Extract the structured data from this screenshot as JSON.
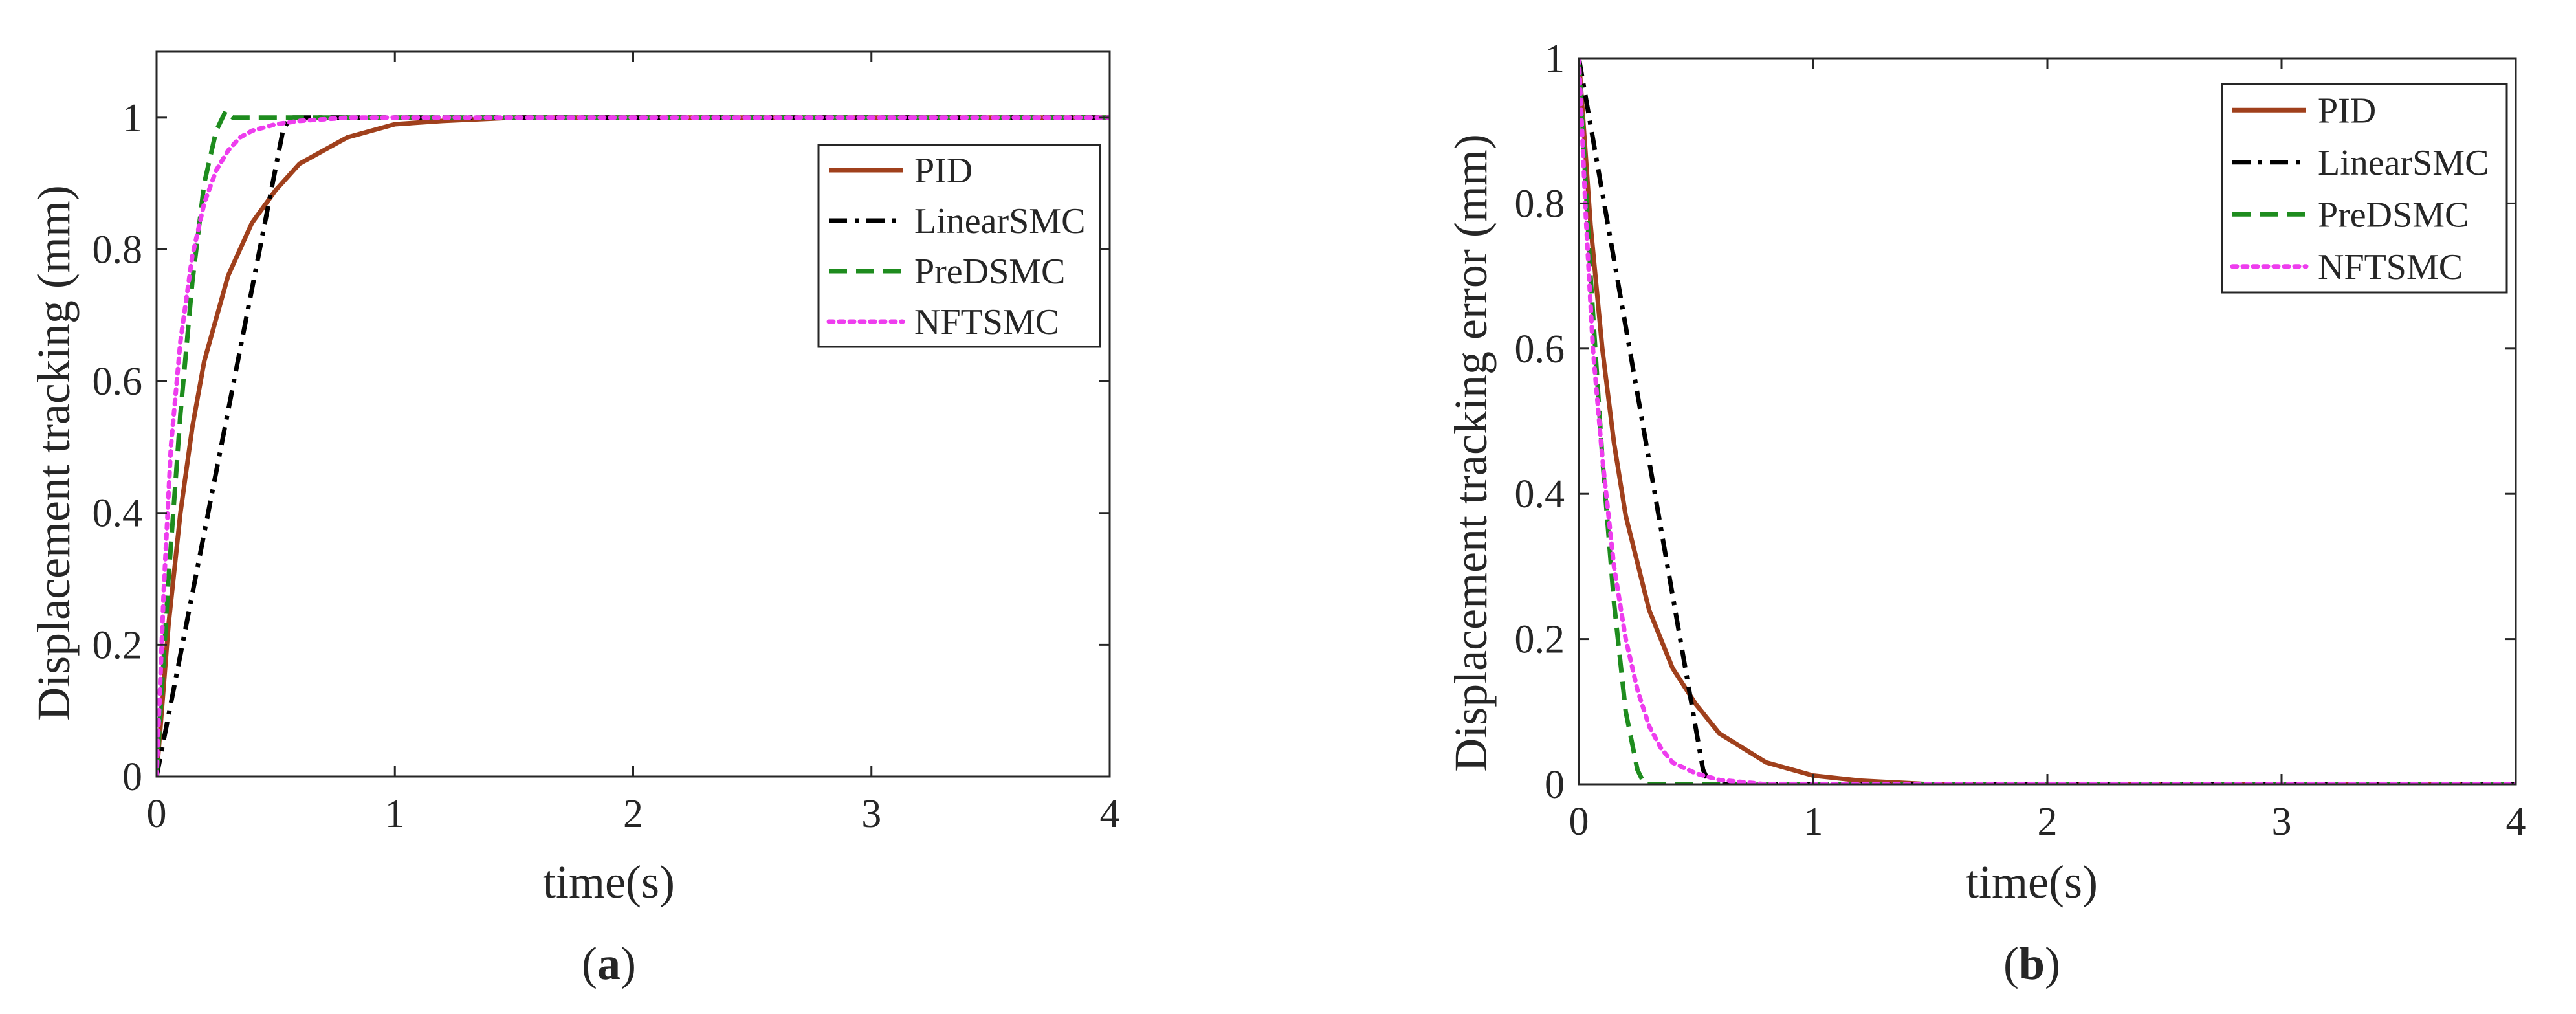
{
  "chart_data": [
    {
      "type": "line",
      "panel_label": "a",
      "title": "",
      "xlabel": "time(s)",
      "ylabel": "Displacement tracking (mm)",
      "xlim": [
        0,
        4
      ],
      "ylim": [
        0,
        1.1
      ],
      "xticks": [
        0,
        1,
        2,
        3,
        4
      ],
      "yticks": [
        0,
        0.2,
        0.4,
        0.6,
        0.8,
        1
      ],
      "xtick_labels": [
        "0",
        "1",
        "2",
        "3",
        "4"
      ],
      "ytick_labels": [
        "0",
        "0.2",
        "0.4",
        "0.6",
        "0.8",
        "1"
      ],
      "legend_position": "top-right",
      "series": [
        {
          "name": "PID",
          "color": "#a0401c",
          "dash": "solid",
          "x": [
            0,
            0.05,
            0.1,
            0.15,
            0.2,
            0.3,
            0.4,
            0.5,
            0.6,
            0.7,
            0.8,
            1.0,
            1.2,
            1.5,
            2.0,
            3.0,
            4.0
          ],
          "y": [
            0,
            0.23,
            0.4,
            0.53,
            0.63,
            0.76,
            0.84,
            0.89,
            0.93,
            0.95,
            0.97,
            0.99,
            0.995,
            1.0,
            1.0,
            1.0,
            1.0
          ]
        },
        {
          "name": "LinearSMC",
          "color": "#000000",
          "dash": "dashdot",
          "x": [
            0,
            0.53,
            0.56,
            1.0,
            2.0,
            3.0,
            4.0
          ],
          "y": [
            0,
            0.98,
            1.0,
            1.0,
            1.0,
            1.0,
            1.0
          ]
        },
        {
          "name": "PreDSMC",
          "color": "#1e8c1e",
          "dash": "dashed",
          "x": [
            0,
            0.05,
            0.1,
            0.15,
            0.2,
            0.25,
            0.29,
            0.32,
            0.36,
            0.5,
            1.0,
            2.0,
            3.0,
            4.0
          ],
          "y": [
            0,
            0.3,
            0.55,
            0.75,
            0.9,
            0.98,
            1.01,
            1.0,
            1.0,
            1.0,
            1.0,
            1.0,
            1.0,
            1.0
          ]
        },
        {
          "name": "NFTSMC",
          "color": "#ee3dee",
          "dash": "dotted",
          "x": [
            0,
            0.03,
            0.06,
            0.1,
            0.15,
            0.2,
            0.25,
            0.3,
            0.35,
            0.4,
            0.5,
            0.6,
            0.8,
            1.0,
            2.0,
            3.0,
            4.0
          ],
          "y": [
            0,
            0.28,
            0.5,
            0.66,
            0.79,
            0.87,
            0.92,
            0.95,
            0.97,
            0.98,
            0.99,
            0.995,
            1.0,
            1.0,
            1.0,
            1.0,
            1.0
          ]
        }
      ]
    },
    {
      "type": "line",
      "panel_label": "b",
      "title": "",
      "xlabel": "time(s)",
      "ylabel": "Displacement tracking error (mm)",
      "xlim": [
        0,
        4
      ],
      "ylim": [
        0,
        1
      ],
      "xticks": [
        0,
        1,
        2,
        3,
        4
      ],
      "yticks": [
        0,
        0.2,
        0.4,
        0.6,
        0.8,
        1
      ],
      "xtick_labels": [
        "0",
        "1",
        "2",
        "3",
        "4"
      ],
      "ytick_labels": [
        "0",
        "0.2",
        "0.4",
        "0.6",
        "0.8",
        "1"
      ],
      "legend_position": "top-right",
      "series": [
        {
          "name": "PID",
          "color": "#a0401c",
          "dash": "solid",
          "x": [
            0,
            0.05,
            0.1,
            0.15,
            0.2,
            0.3,
            0.4,
            0.5,
            0.6,
            0.7,
            0.8,
            1.0,
            1.2,
            1.5,
            2.0,
            3.0,
            4.0
          ],
          "y": [
            1,
            0.77,
            0.6,
            0.47,
            0.37,
            0.24,
            0.16,
            0.11,
            0.07,
            0.05,
            0.03,
            0.012,
            0.005,
            0,
            0,
            0,
            0
          ]
        },
        {
          "name": "LinearSMC",
          "color": "#000000",
          "dash": "dashdot",
          "x": [
            0,
            0.53,
            0.56,
            1.0,
            2.0,
            3.0,
            4.0
          ],
          "y": [
            1,
            0.02,
            0,
            0,
            0,
            0,
            0
          ]
        },
        {
          "name": "PreDSMC",
          "color": "#1e8c1e",
          "dash": "dashed",
          "x": [
            0,
            0.05,
            0.1,
            0.15,
            0.2,
            0.25,
            0.28,
            0.32,
            0.5,
            1.0,
            2.0,
            3.0,
            4.0
          ],
          "y": [
            1,
            0.7,
            0.45,
            0.25,
            0.1,
            0.02,
            0,
            0,
            0,
            0,
            0,
            0,
            0
          ]
        },
        {
          "name": "NFTSMC",
          "color": "#ee3dee",
          "dash": "dotted",
          "x": [
            0,
            0.03,
            0.06,
            0.1,
            0.15,
            0.2,
            0.25,
            0.3,
            0.35,
            0.4,
            0.5,
            0.6,
            0.8,
            1.0,
            2.0,
            3.0,
            4.0
          ],
          "y": [
            1,
            0.78,
            0.6,
            0.45,
            0.3,
            0.2,
            0.13,
            0.08,
            0.05,
            0.03,
            0.015,
            0.006,
            0,
            0,
            0,
            0,
            0
          ]
        }
      ]
    }
  ]
}
